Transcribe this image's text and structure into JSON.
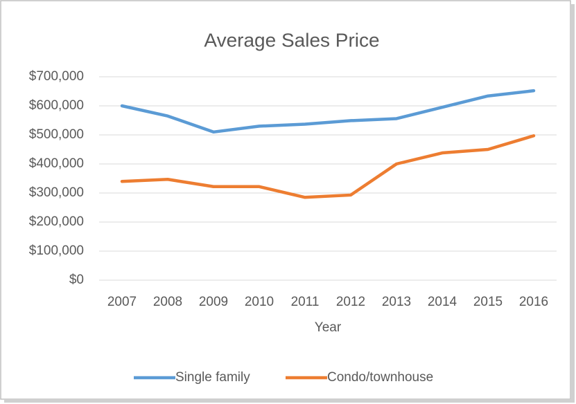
{
  "chart_data": {
    "type": "line",
    "title": "Average Sales Price",
    "x_label": "Year",
    "categories": [
      "2007",
      "2008",
      "2009",
      "2010",
      "2011",
      "2012",
      "2013",
      "2014",
      "2015",
      "2016"
    ],
    "series": [
      {
        "name": "Single family",
        "color": "#5b9bd5",
        "values": [
          600000,
          565000,
          510000,
          530000,
          537000,
          549000,
          556000,
          595000,
          634000,
          652000
        ]
      },
      {
        "name": "Condo/townhouse",
        "color": "#ed7d31",
        "values": [
          340000,
          347000,
          322000,
          322000,
          285000,
          293000,
          400000,
          438000,
          450000,
          497000
        ]
      }
    ],
    "ylim": [
      0,
      700000
    ],
    "yticks": [
      {
        "value": 0,
        "label": "$0"
      },
      {
        "value": 100000,
        "label": "$100,000"
      },
      {
        "value": 200000,
        "label": "$200,000"
      },
      {
        "value": 300000,
        "label": "$300,000"
      },
      {
        "value": 400000,
        "label": "$400,000"
      },
      {
        "value": 500000,
        "label": "$500,000"
      },
      {
        "value": 600000,
        "label": "$600,000"
      },
      {
        "value": 700000,
        "label": "$700,000"
      }
    ],
    "grid": true,
    "legend": "bottom"
  }
}
